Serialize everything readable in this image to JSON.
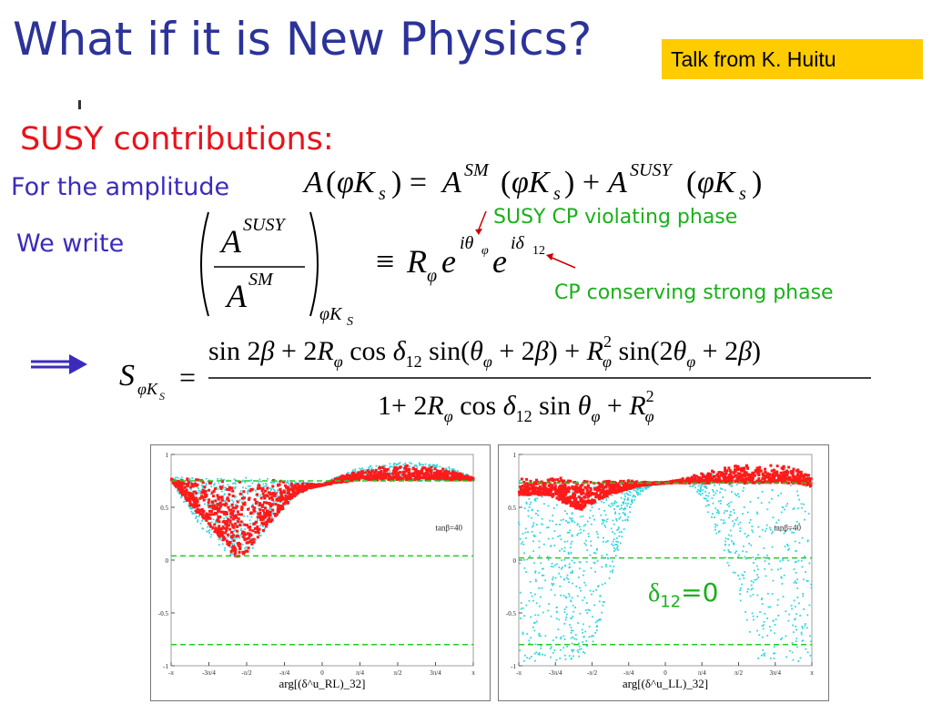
{
  "slide": {
    "title": "What if it is New Physics?",
    "badge": "Talk from K. Huitu",
    "subhead": "SUSY contributions:",
    "amplitude_label": "For the amplitude",
    "we_write_label": "We write",
    "annotation_violating": "SUSY CP violating phase",
    "annotation_conserving": "CP conserving strong phase",
    "delta_note_symbol": "δ",
    "delta_note_sub": "12",
    "delta_note_value": "=0"
  },
  "equations": {
    "amplitude": "A(φK_s) = A^SM(φK_s) + A^SUSY(φK_s)",
    "ratio": "(A^SUSY / A^SM)_φK_S ≡ R_φ e^{iθ_φ} e^{iδ_12}",
    "s_phiK": "S_φK_S = [sin 2β + 2R_φ cos δ_12 sin(θ_φ + 2β) + R_φ² sin(2θ_φ + 2β)] / [1 + 2R_φ cos δ_12 sin θ_φ + R_φ²]"
  },
  "plots": [
    {
      "annotation": "tanβ=40",
      "ytick_labels": [
        "1",
        "0.5",
        "0",
        "-0.5",
        "-1"
      ],
      "xtick_labels": [
        "-π",
        "-3π/4",
        "-π/2",
        "-π/4",
        "0",
        "π/4",
        "π/2",
        "3π/4",
        "π"
      ],
      "xlabel": "arg[(δ^u_RL)_32]"
    },
    {
      "annotation": "tanβ=40",
      "ytick_labels": [
        "1",
        "0.5",
        "0",
        "-0.5",
        "-1"
      ],
      "xtick_labels": [
        "-π",
        "-3π/4",
        "-π/2",
        "-π/4",
        "0",
        "π/4",
        "π/2",
        "3π/4",
        "π"
      ],
      "xlabel": "arg[(δ^u_LL)_32]"
    }
  ],
  "colors": {
    "title": "#2b3399",
    "subhead": "#e8131b",
    "label": "#3b2bbd",
    "note": "#19b01a",
    "badge": "#ffcc00",
    "scatter_red": "#ff1a1a",
    "scatter_cyan": "#33d6e0",
    "dashed": "#22cc22",
    "arrow": "#3b2bbd"
  },
  "chart_data": [
    {
      "type": "scatter",
      "xlabel": "arg[(δ^u_RL)_32]",
      "ylim": [
        -1,
        1
      ],
      "xlim": [
        -3.1416,
        3.1416
      ],
      "hlines": [
        0.75,
        0.04,
        -0.8
      ],
      "series": [
        {
          "color": "#ff1a1a",
          "x": [
            -3.14,
            -2.8,
            -2.5,
            -2.2,
            -2.0,
            -1.8,
            -1.5,
            -1.2,
            -0.9,
            -0.6,
            -0.3,
            0,
            0.4,
            0.8,
            1.2,
            1.6,
            2.0,
            2.4,
            2.8,
            3.14
          ],
          "y_max": [
            0.78,
            0.78,
            0.77,
            0.77,
            0.77,
            0.77,
            0.78,
            0.77,
            0.76,
            0.74,
            0.73,
            0.72,
            0.8,
            0.86,
            0.88,
            0.9,
            0.9,
            0.88,
            0.84,
            0.78
          ],
          "y_min": [
            0.76,
            0.55,
            0.4,
            0.25,
            0.15,
            0.02,
            0.1,
            0.3,
            0.45,
            0.6,
            0.68,
            0.71,
            0.74,
            0.76,
            0.76,
            0.76,
            0.76,
            0.76,
            0.76,
            0.76
          ]
        },
        {
          "color": "#33d6e0",
          "x": [
            -3.14,
            -2.8,
            -2.5,
            -2.2,
            -2.0,
            -1.8,
            -1.5,
            -1.2,
            -0.9,
            -0.6,
            -0.3,
            0,
            0.4,
            0.8,
            1.2,
            1.6,
            2.0,
            2.4,
            2.8,
            3.14
          ],
          "y_max": [
            0.78,
            0.78,
            0.77,
            0.77,
            0.77,
            0.77,
            0.78,
            0.77,
            0.76,
            0.74,
            0.73,
            0.72,
            0.8,
            0.88,
            0.9,
            0.92,
            0.92,
            0.9,
            0.86,
            0.78
          ],
          "y_min": [
            0.74,
            0.5,
            0.3,
            0.15,
            0.08,
            0.0,
            0.05,
            0.25,
            0.42,
            0.58,
            0.67,
            0.7,
            0.73,
            0.75,
            0.75,
            0.75,
            0.75,
            0.75,
            0.75,
            0.75
          ]
        }
      ]
    },
    {
      "type": "scatter",
      "xlabel": "arg[(δ^u_LL)_32]",
      "ylim": [
        -1,
        1
      ],
      "xlim": [
        -3.1416,
        3.1416
      ],
      "hlines": [
        0.73,
        0.02,
        -0.8
      ],
      "series": [
        {
          "color": "#ff1a1a",
          "x": [
            -3.14,
            -2.8,
            -2.5,
            -2.2,
            -2.0,
            -1.8,
            -1.5,
            -1.2,
            -0.9,
            -0.6,
            -0.3,
            0,
            0.4,
            0.8,
            1.2,
            1.6,
            2.0,
            2.4,
            2.8,
            3.14
          ],
          "y_max": [
            0.78,
            0.78,
            0.78,
            0.78,
            0.77,
            0.77,
            0.76,
            0.76,
            0.76,
            0.75,
            0.74,
            0.74,
            0.78,
            0.85,
            0.88,
            0.9,
            0.9,
            0.9,
            0.88,
            0.8
          ],
          "y_min": [
            0.62,
            0.62,
            0.62,
            0.55,
            0.5,
            0.48,
            0.56,
            0.62,
            0.66,
            0.7,
            0.72,
            0.73,
            0.73,
            0.73,
            0.73,
            0.73,
            0.73,
            0.73,
            0.73,
            0.7
          ]
        },
        {
          "color": "#33d6e0",
          "x": [
            -3.14,
            -2.8,
            -2.5,
            -2.2,
            -2.0,
            -1.8,
            -1.5,
            -1.2,
            -0.9,
            -0.6,
            -0.3,
            0,
            0.4,
            0.8,
            1.2,
            1.6,
            2.0,
            2.4,
            2.8,
            3.14
          ],
          "y_max": [
            0.75,
            0.75,
            0.75,
            0.75,
            0.75,
            0.75,
            0.74,
            0.74,
            0.74,
            0.72,
            0.72,
            0.72,
            0.76,
            0.82,
            0.85,
            0.85,
            0.85,
            0.85,
            0.85,
            0.78
          ],
          "y_min": [
            -0.96,
            -0.96,
            -0.96,
            -0.96,
            -0.96,
            -0.96,
            -0.75,
            -0.3,
            0.25,
            0.6,
            0.7,
            0.72,
            0.74,
            0.6,
            0.1,
            -0.4,
            -0.96,
            -0.96,
            -0.96,
            -0.96
          ]
        }
      ]
    }
  ]
}
